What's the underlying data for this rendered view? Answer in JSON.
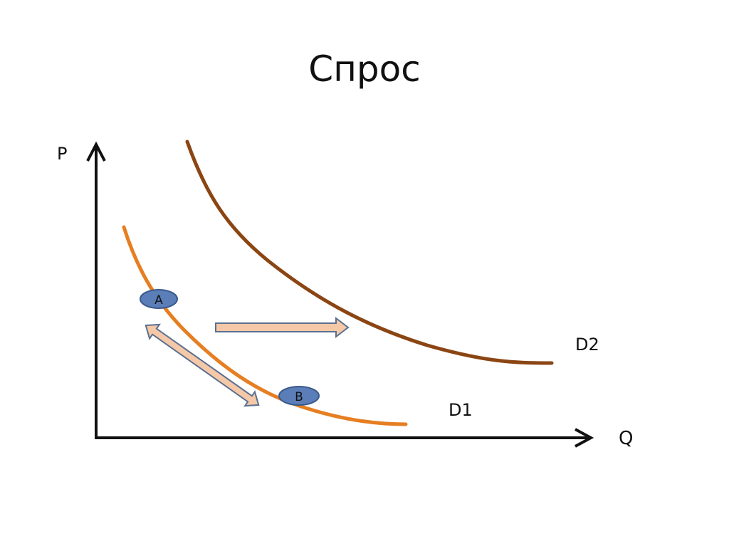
{
  "title": "Спрос",
  "axes": {
    "y_label": "P",
    "x_label": "Q"
  },
  "curves": [
    {
      "id": "d1",
      "label": "D1",
      "color": "#E67E22"
    },
    {
      "id": "d2",
      "label": "D2",
      "color": "#8B4513"
    }
  ],
  "points": [
    {
      "id": "a",
      "label": "A"
    },
    {
      "id": "b",
      "label": "B"
    }
  ],
  "colors": {
    "axis": "#111111",
    "point_fill": "#5B7DB8",
    "point_stroke": "#3A5A8C",
    "arrow_fill": "#F5C8A8",
    "arrow_stroke": "#5A7090"
  }
}
